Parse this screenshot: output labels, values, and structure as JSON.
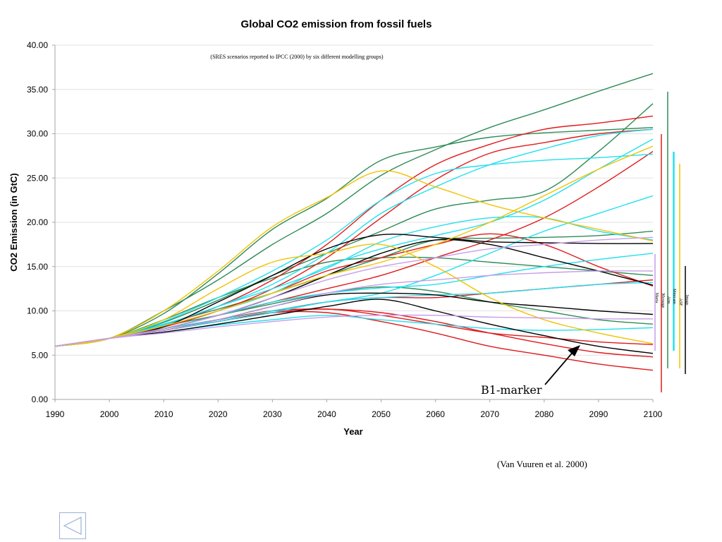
{
  "colors": {
    "green": "#2e8b57",
    "red": "#e0191b",
    "cyan": "#22e0ee",
    "black": "#000000",
    "yellow": "#f2c200",
    "purple": "#c79ee8",
    "axis": "#a6a6a6",
    "grid": "#e0e0e0"
  },
  "annotation": {
    "marker_label": "B1-marker",
    "citation": "(Van Vuuren et al. 2000)"
  },
  "navigation": {
    "back_icon": "left-triangle-icon"
  },
  "chart_data": {
    "type": "line",
    "title": "Global CO2 emission from fossil fuels",
    "subtitle": "(SRES scenarios reported to IPCC (2000) by six different modelling groups)",
    "xlabel": "Year",
    "ylabel": "CO2 Emission (in GtC)",
    "x": [
      1990,
      2000,
      2010,
      2020,
      2030,
      2040,
      2050,
      2060,
      2070,
      2080,
      2090,
      2100
    ],
    "x_ticks": [
      "1990",
      "2000",
      "2010",
      "2020",
      "2030",
      "2040",
      "2050",
      "2060",
      "2070",
      "2080",
      "2090",
      "2100"
    ],
    "y_ticks": [
      "0.00",
      "5.00",
      "10.00",
      "15.00",
      "20.00",
      "25.00",
      "30.00",
      "35.00",
      "40.00"
    ],
    "xlim": [
      1990,
      2100
    ],
    "ylim": [
      0,
      40
    ],
    "grid": "horizontal",
    "legend": {
      "placement": "right",
      "entries": [
        {
          "label": "Maria",
          "color": "#e0191b"
        },
        {
          "label": "Message",
          "color": "#2e8b57"
        },
        {
          "label": "Aim",
          "color": "#22e0ee"
        },
        {
          "label": "Minicam",
          "color": "#22e0ee"
        },
        {
          "label": "ASF",
          "color": "#f2c200"
        },
        {
          "label": "Image",
          "color": "#000000"
        }
      ]
    },
    "series": [
      {
        "color": "#2e8b57",
        "values": [
          6.0,
          6.9,
          10.0,
          13.5,
          17.5,
          21.0,
          25.3,
          28.2,
          30.7,
          32.7,
          34.8,
          36.8
        ]
      },
      {
        "color": "#2e8b57",
        "values": [
          6.0,
          6.9,
          9.7,
          14.2,
          19.2,
          22.7,
          27.0,
          28.5,
          29.6,
          30.1,
          30.4,
          30.7
        ]
      },
      {
        "color": "#2e8b57",
        "values": [
          6.0,
          6.9,
          8.7,
          11.2,
          14.0,
          16.5,
          19.0,
          21.5,
          22.5,
          23.5,
          28.0,
          33.4
        ]
      },
      {
        "color": "#2e8b57",
        "values": [
          6.0,
          6.9,
          9.0,
          11.5,
          13.7,
          15.5,
          16.0,
          16.0,
          15.5,
          15.0,
          14.5,
          14.0
        ]
      },
      {
        "color": "#2e8b57",
        "values": [
          6.0,
          6.9,
          8.5,
          10.2,
          12.0,
          14.0,
          16.0,
          18.0,
          18.2,
          18.3,
          18.5,
          19.0
        ]
      },
      {
        "color": "#2e8b57",
        "values": [
          6.0,
          6.9,
          8.3,
          9.5,
          10.8,
          12.0,
          12.7,
          12.2,
          11.0,
          10.0,
          9.0,
          8.5
        ]
      },
      {
        "color": "#e0191b",
        "values": [
          6.0,
          6.9,
          8.4,
          10.5,
          13.5,
          17.5,
          22.5,
          26.5,
          28.8,
          30.5,
          31.2,
          32.0
        ]
      },
      {
        "color": "#e0191b",
        "values": [
          6.0,
          6.9,
          8.2,
          10.0,
          12.5,
          16.0,
          20.5,
          24.8,
          27.8,
          29.0,
          30.0,
          30.5
        ]
      },
      {
        "color": "#e0191b",
        "values": [
          6.0,
          6.9,
          8.0,
          9.5,
          11.0,
          12.5,
          14.0,
          16.0,
          18.0,
          20.5,
          24.0,
          28.0
        ]
      },
      {
        "color": "#e0191b",
        "values": [
          6.0,
          6.9,
          8.2,
          10.0,
          12.0,
          14.5,
          16.0,
          17.5,
          18.7,
          17.5,
          15.0,
          12.8
        ]
      },
      {
        "color": "#e0191b",
        "values": [
          6.0,
          6.9,
          8.0,
          9.0,
          10.0,
          11.0,
          11.5,
          11.5,
          12.0,
          12.5,
          13.0,
          13.5
        ]
      },
      {
        "color": "#e0191b",
        "values": [
          6.0,
          6.9,
          7.8,
          8.8,
          9.8,
          10.2,
          9.5,
          8.5,
          7.5,
          7.0,
          6.5,
          6.2
        ]
      },
      {
        "color": "#e0191b",
        "values": [
          6.0,
          6.9,
          7.8,
          9.0,
          10.0,
          10.2,
          9.8,
          8.8,
          7.5,
          6.3,
          5.3,
          4.8
        ]
      },
      {
        "color": "#e0191b",
        "values": [
          6.0,
          6.9,
          7.8,
          8.8,
          9.8,
          9.8,
          8.8,
          7.5,
          6.0,
          5.0,
          4.0,
          3.3
        ]
      },
      {
        "color": "#22e0ee",
        "values": [
          6.0,
          6.9,
          8.8,
          11.5,
          14.5,
          18.0,
          22.5,
          25.5,
          26.5,
          27.0,
          27.3,
          27.7
        ]
      },
      {
        "color": "#22e0ee",
        "values": [
          6.0,
          6.9,
          8.5,
          10.5,
          13.0,
          16.5,
          21.0,
          24.0,
          26.5,
          28.3,
          29.8,
          30.5
        ]
      },
      {
        "color": "#22e0ee",
        "values": [
          6.0,
          6.9,
          8.3,
          10.0,
          12.0,
          15.0,
          17.0,
          18.5,
          20.0,
          22.5,
          26.0,
          29.4
        ]
      },
      {
        "color": "#22e0ee",
        "values": [
          6.0,
          6.9,
          8.0,
          9.0,
          10.0,
          11.0,
          12.0,
          14.0,
          16.5,
          19.0,
          21.0,
          23.0
        ]
      },
      {
        "color": "#22e0ee",
        "values": [
          6.0,
          6.9,
          8.4,
          10.5,
          12.5,
          14.8,
          17.8,
          19.5,
          20.5,
          20.5,
          19.0,
          18.0
        ]
      },
      {
        "color": "#22e0ee",
        "values": [
          6.0,
          6.9,
          8.0,
          9.5,
          11.0,
          12.0,
          12.6,
          13.0,
          14.0,
          15.0,
          15.8,
          16.5
        ]
      },
      {
        "color": "#22e0ee",
        "values": [
          6.0,
          6.9,
          7.8,
          8.8,
          9.8,
          11.0,
          11.5,
          11.8,
          12.0,
          12.5,
          13.0,
          13.2
        ]
      },
      {
        "color": "#22e0ee",
        "values": [
          6.0,
          6.9,
          7.6,
          8.4,
          9.0,
          9.5,
          9.0,
          8.5,
          8.0,
          7.8,
          7.9,
          8.1
        ]
      },
      {
        "color": "#000000",
        "values": [
          6.0,
          6.9,
          8.2,
          11.0,
          14.0,
          17.0,
          18.6,
          18.3,
          17.8,
          17.7,
          17.6,
          17.6
        ]
      },
      {
        "color": "#000000",
        "values": [
          6.0,
          6.9,
          7.8,
          9.0,
          10.5,
          11.8,
          12.0,
          11.8,
          11.0,
          10.5,
          10.0,
          9.6
        ]
      },
      {
        "color": "#000000",
        "values": [
          6.0,
          6.9,
          7.6,
          8.5,
          9.5,
          10.5,
          11.3,
          10.0,
          8.5,
          7.2,
          6.0,
          5.2
        ]
      },
      {
        "color": "#000000",
        "values": [
          6.0,
          6.9,
          8.0,
          9.5,
          11.5,
          14.0,
          16.5,
          18.0,
          17.5,
          16.0,
          14.5,
          12.9
        ]
      },
      {
        "color": "#f2c200",
        "values": [
          6.0,
          6.9,
          10.0,
          14.5,
          19.5,
          22.8,
          25.8,
          24.0,
          22.0,
          20.5,
          19.2,
          17.9
        ]
      },
      {
        "color": "#f2c200",
        "values": [
          6.0,
          6.9,
          9.0,
          12.5,
          15.5,
          16.5,
          17.5,
          15.0,
          11.5,
          9.0,
          7.5,
          6.3
        ]
      },
      {
        "color": "#f2c200",
        "values": [
          6.0,
          6.9,
          8.3,
          10.0,
          12.0,
          14.0,
          15.5,
          17.5,
          20.0,
          23.0,
          26.0,
          28.6
        ]
      },
      {
        "color": "#c79ee8",
        "values": [
          6.0,
          6.9,
          7.8,
          9.0,
          10.5,
          12.0,
          13.0,
          13.5,
          14.0,
          14.3,
          14.5,
          14.5
        ]
      },
      {
        "color": "#c79ee8",
        "values": [
          6.0,
          6.9,
          7.5,
          8.2,
          8.8,
          9.3,
          9.5,
          9.5,
          9.3,
          9.2,
          9.1,
          9.1
        ]
      },
      {
        "color": "#c79ee8",
        "values": [
          6.0,
          6.9,
          8.0,
          9.5,
          11.5,
          13.5,
          15.0,
          16.0,
          17.0,
          17.5,
          18.0,
          18.3
        ]
      }
    ]
  }
}
